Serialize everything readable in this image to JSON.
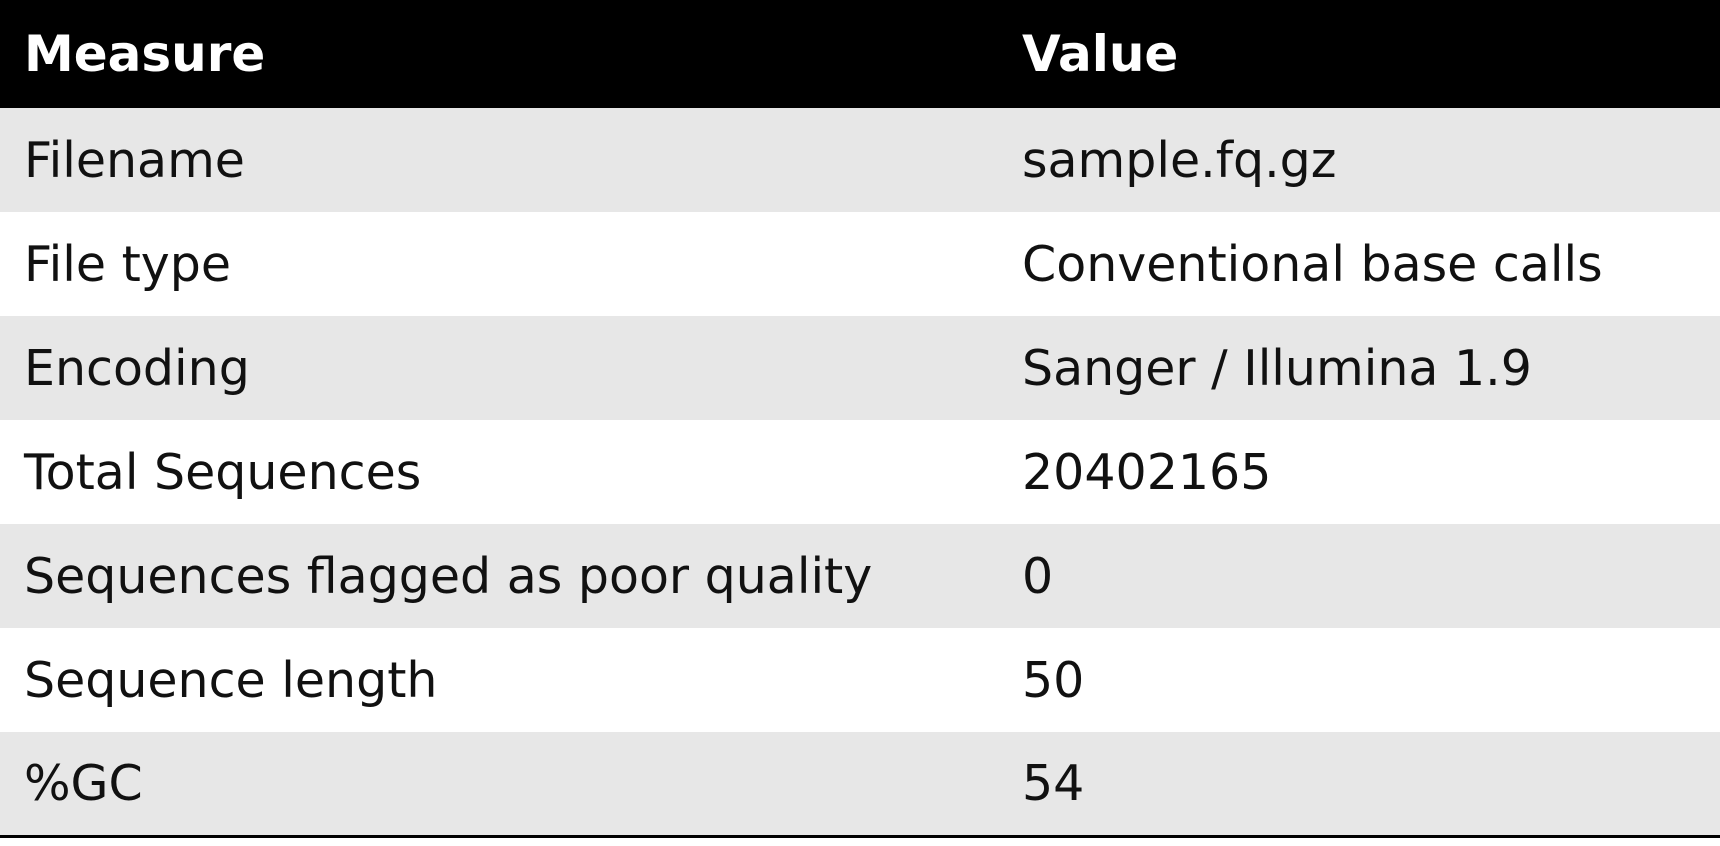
{
  "table": {
    "headers": [
      "Measure",
      "Value"
    ],
    "rows": [
      [
        "Filename",
        "sample.fq.gz"
      ],
      [
        "File type",
        "Conventional base calls"
      ],
      [
        "Encoding",
        "Sanger / Illumina 1.9"
      ],
      [
        "Total Sequences",
        "20402165"
      ],
      [
        "Sequences flagged as poor quality",
        "0"
      ],
      [
        "Sequence length",
        "50"
      ],
      [
        "%GC",
        "54"
      ]
    ]
  },
  "colors": {
    "header_bg": "#000000",
    "header_text": "#ffffff",
    "row_alt_bg": "#e7e7e7",
    "row_bg": "#ffffff",
    "text": "#111111"
  }
}
